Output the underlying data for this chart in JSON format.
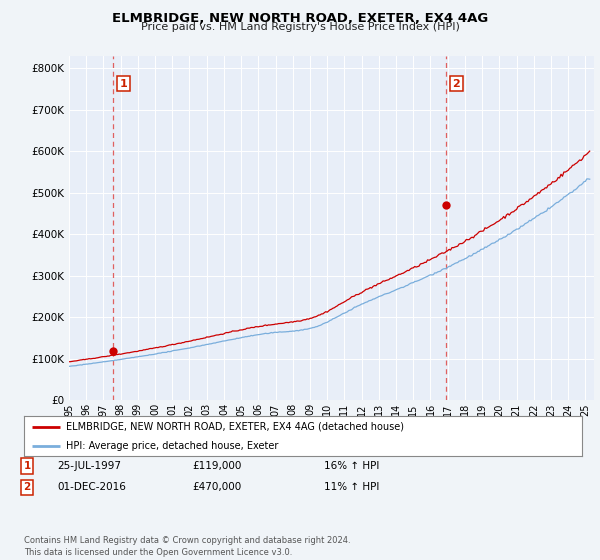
{
  "title": "ELMBRIDGE, NEW NORTH ROAD, EXETER, EX4 4AG",
  "subtitle": "Price paid vs. HM Land Registry's House Price Index (HPI)",
  "background_color": "#f0f4f8",
  "plot_bg_color": "#e8eef8",
  "legend_label_red": "ELMBRIDGE, NEW NORTH ROAD, EXETER, EX4 4AG (detached house)",
  "legend_label_blue": "HPI: Average price, detached house, Exeter",
  "transaction1_date": "25-JUL-1997",
  "transaction1_price": 119000,
  "transaction1_hpi": "16% ↑ HPI",
  "transaction2_date": "01-DEC-2016",
  "transaction2_price": 470000,
  "transaction2_hpi": "11% ↑ HPI",
  "footnote": "Contains HM Land Registry data © Crown copyright and database right 2024.\nThis data is licensed under the Open Government Licence v3.0.",
  "ylim": [
    0,
    830000
  ],
  "yticks": [
    0,
    100000,
    200000,
    300000,
    400000,
    500000,
    600000,
    700000,
    800000
  ],
  "ytick_labels": [
    "£0",
    "£100K",
    "£200K",
    "£300K",
    "£400K",
    "£500K",
    "£600K",
    "£700K",
    "£800K"
  ],
  "red_color": "#cc0000",
  "blue_color": "#7aaedc",
  "dashed_color": "#e06060",
  "annotation_box_color": "#cc2200",
  "marker1_x": 1997.583,
  "marker1_y": 119000,
  "marker2_x": 2016.917,
  "marker2_y": 470000,
  "vline1_x": 1997.583,
  "vline2_x": 2016.917,
  "xmin": 1995.0,
  "xmax": 2025.5,
  "xticks": [
    1995,
    1996,
    1997,
    1998,
    1999,
    2000,
    2001,
    2002,
    2003,
    2004,
    2005,
    2006,
    2007,
    2008,
    2009,
    2010,
    2011,
    2012,
    2013,
    2014,
    2015,
    2016,
    2017,
    2018,
    2019,
    2020,
    2021,
    2022,
    2023,
    2024,
    2025
  ],
  "seed": 42
}
